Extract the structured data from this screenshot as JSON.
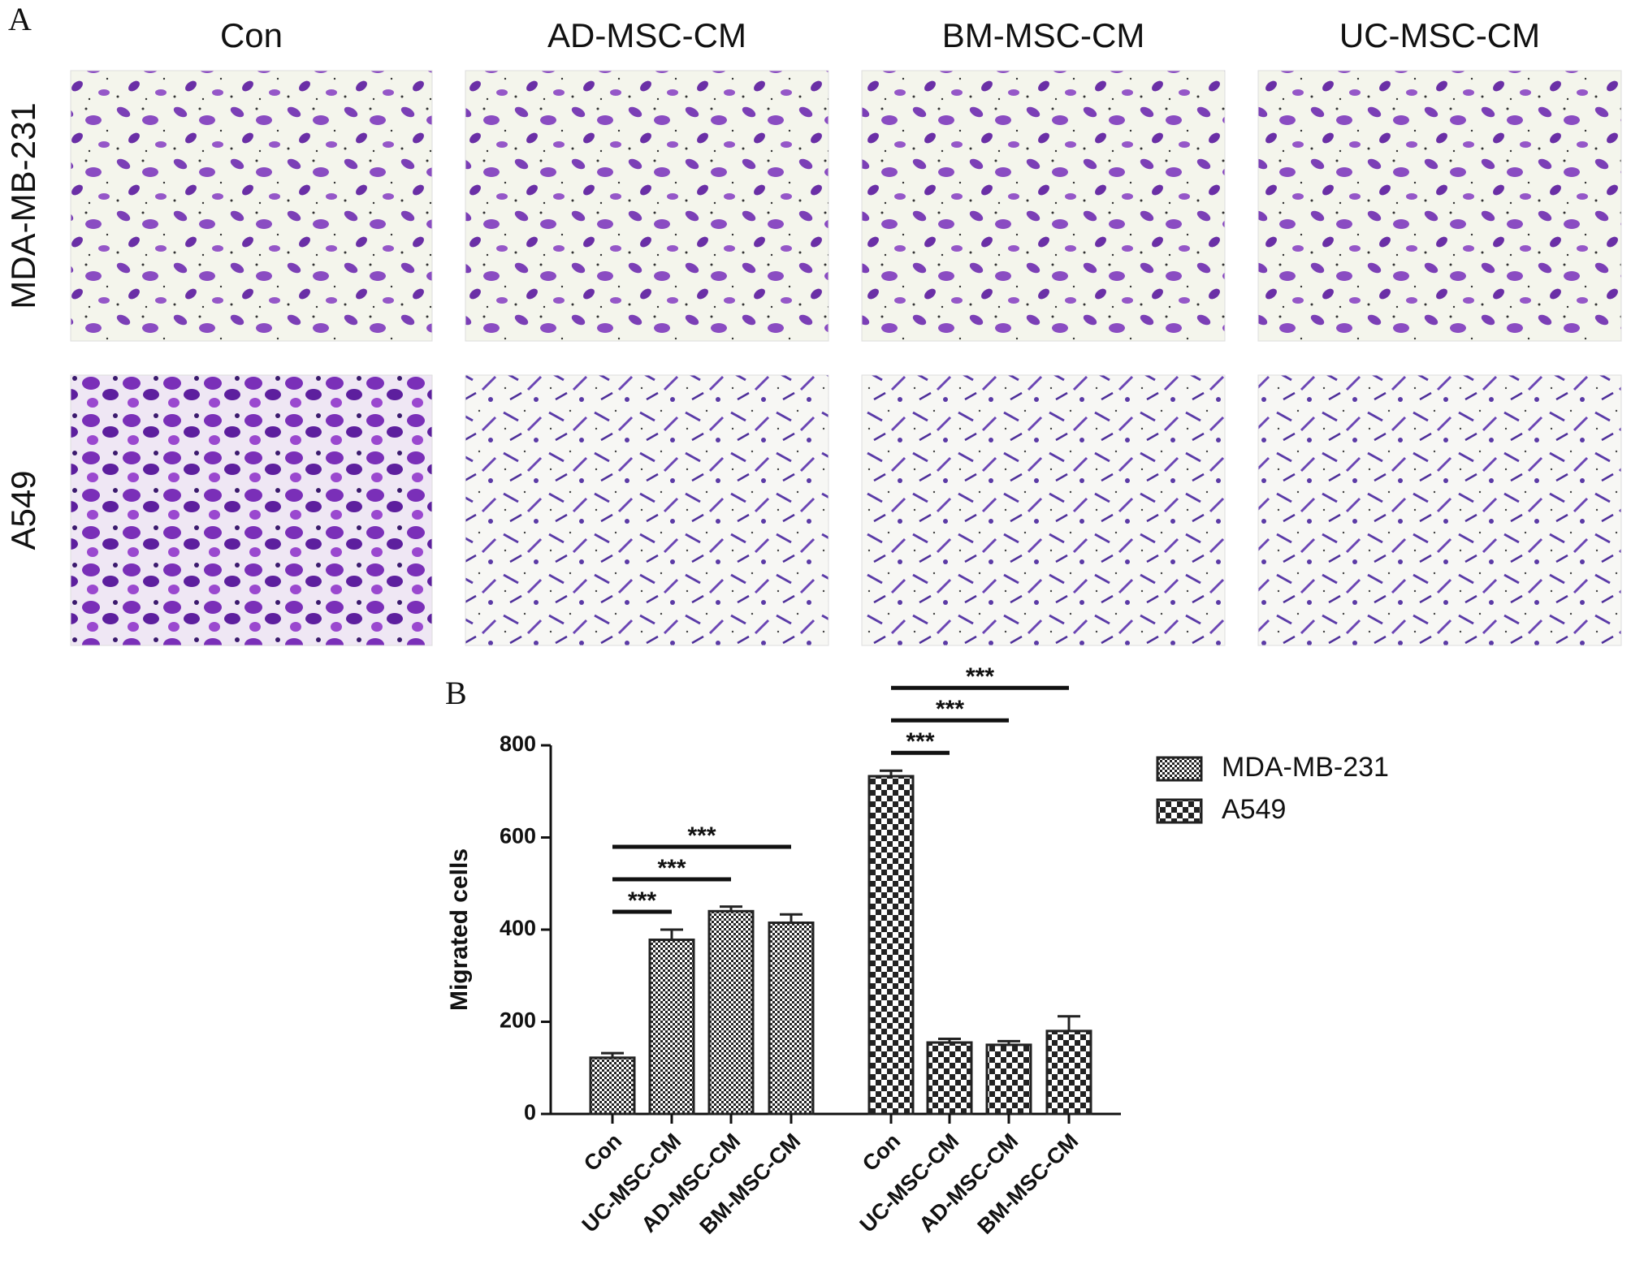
{
  "panel_a": {
    "label": "A",
    "columns": [
      "Con",
      "AD-MSC-CM",
      "BM-MSC-CM",
      "UC-MSC-CM"
    ],
    "rows": [
      "MDA-MB-231",
      "A549"
    ]
  },
  "chart_data": {
    "type": "bar",
    "panel_label": "B",
    "ylabel": "Migrated cells",
    "ylim": [
      0,
      800
    ],
    "yticks": [
      0,
      200,
      400,
      600,
      800
    ],
    "series": [
      {
        "name": "MDA-MB-231",
        "color": "#222222",
        "pattern": "fine-checker",
        "categories": [
          "Con",
          "UC-MSC-CM",
          "AD-MSC-CM",
          "BM-MSC-CM"
        ],
        "values": [
          122,
          378,
          440,
          415
        ],
        "errors": [
          10,
          22,
          10,
          18
        ]
      },
      {
        "name": "A549",
        "color": "#222222",
        "pattern": "checker",
        "categories": [
          "Con",
          "UC-MSC-CM",
          "AD-MSC-CM",
          "BM-MSC-CM"
        ],
        "values": [
          733,
          155,
          150,
          180
        ],
        "errors": [
          12,
          8,
          8,
          32
        ]
      }
    ],
    "annotations": [
      {
        "series": 0,
        "from": 0,
        "to": 1,
        "text": "***"
      },
      {
        "series": 0,
        "from": 0,
        "to": 2,
        "text": "***"
      },
      {
        "series": 0,
        "from": 0,
        "to": 3,
        "text": "***"
      },
      {
        "series": 1,
        "from": 0,
        "to": 1,
        "text": "***"
      },
      {
        "series": 1,
        "from": 0,
        "to": 2,
        "text": "***"
      },
      {
        "series": 1,
        "from": 0,
        "to": 3,
        "text": "***"
      }
    ],
    "legend": "right"
  }
}
